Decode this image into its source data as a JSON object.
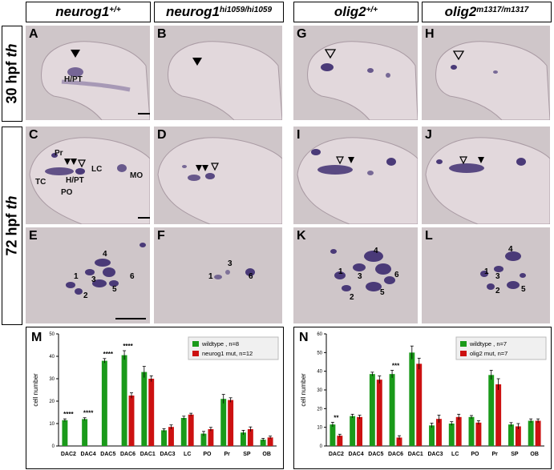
{
  "headers": [
    {
      "gene": "neurog1",
      "sup": "+/+"
    },
    {
      "gene": "neurog1",
      "sup": "hi1059/hi1059"
    },
    {
      "gene": "olig2",
      "sup": "+/+"
    },
    {
      "gene": "olig2",
      "sup": "m1317/m1317"
    }
  ],
  "rows": [
    {
      "stage": "30 hpf",
      "marker": "th"
    },
    {
      "stage": "72 hpf",
      "marker": "th"
    }
  ],
  "panels": {
    "A": {
      "letter": "A",
      "tags": [
        "H/PT"
      ]
    },
    "B": {
      "letter": "B"
    },
    "G": {
      "letter": "G"
    },
    "H": {
      "letter": "H"
    },
    "C": {
      "letter": "C",
      "tags": [
        "Pr",
        "LC",
        "H/PT",
        "TC",
        "PO",
        "MO"
      ]
    },
    "D": {
      "letter": "D"
    },
    "I": {
      "letter": "I"
    },
    "J": {
      "letter": "J"
    },
    "E": {
      "letter": "E",
      "nums": [
        "4",
        "1",
        "3",
        "6",
        "2",
        "5"
      ]
    },
    "F": {
      "letter": "F",
      "nums": [
        "3",
        "1",
        "6"
      ]
    },
    "K": {
      "letter": "K",
      "nums": [
        "4",
        "1",
        "3",
        "6",
        "2",
        "5"
      ]
    },
    "L": {
      "letter": "L",
      "nums": [
        "4",
        "1",
        "3",
        "2",
        "5"
      ]
    }
  },
  "chart_data": [
    {
      "panel": "M",
      "type": "bar",
      "ylabel": "cell number",
      "ylim": [
        0,
        50
      ],
      "yticks": [
        0,
        10,
        20,
        30,
        40,
        50
      ],
      "categories": [
        "DAC2",
        "DAC4",
        "DAC5",
        "DAC6",
        "DAC1",
        "DAC3",
        "LC",
        "PO",
        "Pr",
        "SP",
        "OB"
      ],
      "series": [
        {
          "name": "wildtype , n=8",
          "color": "#1a9a1a",
          "values": [
            11.5,
            12,
            38,
            40.5,
            33,
            7,
            12.5,
            5.5,
            21,
            6,
            2.8
          ],
          "errors": [
            0.6,
            0.6,
            1,
            2,
            2.5,
            0.7,
            0.8,
            1,
            2,
            1,
            0.6
          ]
        },
        {
          "name": "neurog1 mut, n=12",
          "color": "#cc1111",
          "values": [
            0,
            0,
            0,
            22.5,
            30,
            8.5,
            14,
            7.5,
            20.5,
            7.5,
            3.8
          ],
          "errors": [
            0,
            0,
            0,
            1.2,
            1.3,
            0.9,
            0.6,
            0.8,
            1,
            1,
            0.6
          ]
        }
      ],
      "significance": [
        "****",
        "****",
        "****",
        "****",
        "",
        "",
        "",
        "",
        "",
        "",
        ""
      ]
    },
    {
      "panel": "N",
      "type": "bar",
      "ylabel": "cell number",
      "ylim": [
        0,
        60
      ],
      "yticks": [
        0,
        10,
        20,
        30,
        40,
        50,
        60
      ],
      "categories": [
        "DAC2",
        "DAC4",
        "DAC5",
        "DAC6",
        "DAC1",
        "DAC3",
        "LC",
        "PO",
        "Pr",
        "SP",
        "OB"
      ],
      "series": [
        {
          "name": "wildtype , n=7",
          "color": "#1a9a1a",
          "values": [
            11.5,
            16,
            38.5,
            38.5,
            50,
            11,
            12,
            15.5,
            38,
            11.5,
            13.5
          ],
          "errors": [
            1.2,
            1,
            1,
            2,
            3.5,
            1.2,
            1,
            0.8,
            2.5,
            1,
            1
          ]
        },
        {
          "name": "olig2 mut, n=7",
          "color": "#cc1111",
          "values": [
            5.5,
            15.5,
            35.5,
            4.5,
            44,
            14.5,
            15.5,
            12.5,
            33,
            10.5,
            13.5
          ],
          "errors": [
            0.8,
            1,
            2,
            1,
            3,
            2,
            1.5,
            1,
            3,
            1.5,
            1
          ]
        }
      ],
      "significance": [
        "**",
        "",
        "",
        "***",
        "",
        "",
        "",
        "",
        "",
        "",
        ""
      ]
    }
  ],
  "colors": {
    "stain": "#4a3a78",
    "background": "#cfc6c9"
  }
}
